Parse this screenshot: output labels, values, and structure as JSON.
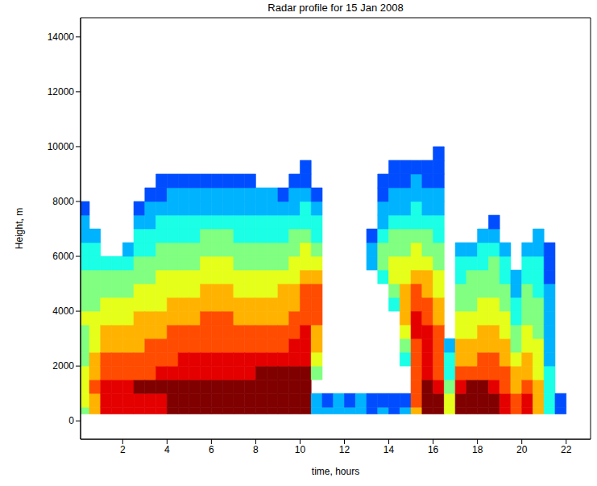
{
  "chart_data": {
    "type": "heatmap",
    "title": "Radar profile for 15 Jan 2008",
    "x_label": "time, hours",
    "y_label": "Height, m",
    "xlim": [
      0.1,
      23.1
    ],
    "xticks": [
      2,
      4,
      6,
      8,
      10,
      12,
      14,
      16,
      18,
      20,
      22
    ],
    "ylim": [
      -670,
      14700
    ],
    "yticks": [
      0,
      2000,
      4000,
      6000,
      8000,
      10000,
      12000,
      14000
    ],
    "grid": false,
    "x_bins": [
      0.1,
      0.5,
      1,
      1.5,
      2,
      2.5,
      3,
      3.5,
      4,
      4.5,
      5,
      5.5,
      6,
      6.5,
      7,
      7.5,
      8,
      8.5,
      9,
      9.5,
      10,
      10.5,
      11,
      11.5,
      12,
      12.5,
      13,
      13.5,
      14,
      14.5,
      15,
      15.5,
      16,
      16.5,
      17,
      17.5,
      18,
      18.5,
      19,
      19.5,
      20,
      20.5,
      21,
      21.5,
      22
    ],
    "y_bins": [
      250,
      500,
      1000,
      1500,
      2000,
      2500,
      3000,
      3500,
      4000,
      4500,
      5000,
      5500,
      6000,
      6500,
      7000,
      7500,
      8000,
      8500,
      9000,
      9500,
      10000
    ],
    "zlim": [
      0,
      10
    ],
    "z": [
      [
        5,
        6,
        6,
        6,
        5,
        5,
        5,
        6,
        5,
        5,
        5,
        4,
        4,
        3,
        3,
        2,
        null,
        null,
        null,
        null
      ],
      [
        7,
        7,
        8,
        7,
        7,
        6,
        6,
        6,
        5,
        5,
        5,
        4,
        4,
        3,
        null,
        null,
        null,
        null,
        null,
        null
      ],
      [
        9,
        9,
        9,
        8,
        8,
        7,
        7,
        6,
        6,
        5,
        5,
        4,
        null,
        null,
        null,
        null,
        null,
        null,
        null,
        null
      ],
      [
        9,
        9,
        9,
        8,
        8,
        7,
        7,
        6,
        6,
        5,
        5,
        4,
        null,
        null,
        null,
        null,
        null,
        null,
        null,
        null
      ],
      [
        9,
        9,
        9,
        8,
        8,
        7,
        7,
        6,
        6,
        5,
        5,
        4,
        3,
        null,
        null,
        null,
        null,
        null,
        null,
        null
      ],
      [
        9,
        9,
        10,
        8,
        8,
        7,
        7,
        7,
        6,
        6,
        5,
        5,
        4,
        4,
        3,
        2,
        null,
        null,
        null,
        null
      ],
      [
        9,
        9,
        10,
        8,
        8,
        8,
        7,
        7,
        6,
        6,
        5,
        5,
        4,
        4,
        3,
        3,
        2,
        null,
        null,
        null
      ],
      [
        9,
        9,
        10,
        9,
        8,
        8,
        7,
        7,
        6,
        6,
        6,
        5,
        5,
        4,
        4,
        3,
        2,
        2,
        null,
        null
      ],
      [
        10,
        10,
        10,
        9,
        8,
        8,
        8,
        7,
        7,
        6,
        6,
        5,
        5,
        4,
        4,
        3,
        3,
        2,
        null,
        null
      ],
      [
        10,
        10,
        10,
        9,
        9,
        8,
        8,
        7,
        7,
        6,
        6,
        5,
        5,
        4,
        4,
        3,
        3,
        2,
        null,
        null
      ],
      [
        10,
        10,
        10,
        9,
        9,
        8,
        8,
        7,
        7,
        6,
        6,
        5,
        5,
        4,
        4,
        3,
        3,
        2,
        null,
        null
      ],
      [
        10,
        10,
        10,
        9,
        9,
        8,
        8,
        8,
        7,
        7,
        6,
        6,
        5,
        5,
        4,
        3,
        3,
        2,
        null,
        null
      ],
      [
        10,
        10,
        10,
        9,
        9,
        8,
        8,
        8,
        7,
        7,
        6,
        6,
        5,
        5,
        4,
        3,
        3,
        2,
        null,
        null
      ],
      [
        10,
        10,
        10,
        9,
        9,
        8,
        8,
        8,
        7,
        7,
        6,
        6,
        5,
        5,
        4,
        3,
        3,
        2,
        null,
        null
      ],
      [
        10,
        10,
        10,
        9,
        9,
        8,
        8,
        7,
        7,
        6,
        6,
        5,
        5,
        4,
        4,
        3,
        3,
        2,
        null,
        null
      ],
      [
        10,
        10,
        10,
        9,
        9,
        8,
        8,
        7,
        7,
        6,
        6,
        5,
        5,
        4,
        4,
        3,
        3,
        2,
        null,
        null
      ],
      [
        10,
        10,
        10,
        10,
        9,
        8,
        8,
        7,
        7,
        6,
        6,
        5,
        5,
        4,
        4,
        3,
        3,
        null,
        null,
        null
      ],
      [
        10,
        10,
        10,
        10,
        9,
        8,
        8,
        7,
        7,
        6,
        6,
        5,
        5,
        4,
        4,
        3,
        3,
        null,
        null,
        null
      ],
      [
        10,
        10,
        10,
        10,
        9,
        8,
        8,
        7,
        7,
        7,
        6,
        5,
        5,
        4,
        4,
        3,
        2,
        null,
        null,
        null
      ],
      [
        10,
        10,
        10,
        10,
        9,
        9,
        8,
        8,
        7,
        7,
        6,
        6,
        5,
        5,
        4,
        3,
        3,
        2,
        null,
        null
      ],
      [
        10,
        10,
        10,
        10,
        9,
        9,
        9,
        8,
        8,
        8,
        7,
        6,
        6,
        5,
        4,
        4,
        3,
        2,
        2,
        null
      ],
      [
        3,
        3,
        null,
        5,
        6,
        7,
        7,
        8,
        8,
        8,
        7,
        6,
        5,
        4,
        4,
        3,
        2,
        null,
        null,
        null
      ],
      [
        3,
        2,
        null,
        null,
        null,
        null,
        null,
        null,
        null,
        null,
        null,
        null,
        null,
        null,
        null,
        null,
        null,
        null,
        null,
        null
      ],
      [
        3,
        3,
        null,
        null,
        null,
        null,
        null,
        null,
        null,
        null,
        null,
        null,
        null,
        null,
        null,
        null,
        null,
        null,
        null,
        null
      ],
      [
        3,
        2,
        null,
        null,
        null,
        null,
        null,
        null,
        null,
        null,
        null,
        null,
        null,
        null,
        null,
        null,
        null,
        null,
        null,
        null
      ],
      [
        3,
        3,
        null,
        null,
        null,
        null,
        null,
        null,
        null,
        null,
        null,
        null,
        null,
        null,
        null,
        null,
        null,
        null,
        null,
        null
      ],
      [
        2,
        2,
        null,
        null,
        null,
        null,
        null,
        null,
        null,
        null,
        null,
        3,
        3,
        2,
        null,
        null,
        null,
        null,
        null,
        null
      ],
      [
        3,
        2,
        null,
        null,
        null,
        null,
        null,
        null,
        null,
        null,
        4,
        5,
        5,
        4,
        3,
        3,
        2,
        2,
        null,
        null
      ],
      [
        2,
        2,
        null,
        null,
        null,
        null,
        null,
        null,
        4,
        5,
        6,
        6,
        5,
        5,
        4,
        3,
        3,
        2,
        2,
        null
      ],
      [
        3,
        2,
        null,
        null,
        4,
        5,
        6,
        7,
        7,
        7,
        6,
        6,
        5,
        5,
        4,
        3,
        3,
        2,
        2,
        null
      ],
      [
        7,
        8,
        8,
        8,
        8,
        8,
        9,
        9,
        8,
        8,
        7,
        6,
        6,
        5,
        4,
        4,
        3,
        3,
        2,
        null
      ],
      [
        10,
        10,
        10,
        9,
        9,
        9,
        9,
        8,
        8,
        7,
        7,
        6,
        5,
        5,
        4,
        3,
        3,
        2,
        2,
        null
      ],
      [
        10,
        10,
        9,
        8,
        8,
        8,
        8,
        7,
        7,
        6,
        6,
        5,
        5,
        4,
        4,
        3,
        3,
        2,
        2,
        2
      ],
      [
        6,
        6,
        5,
        4,
        4,
        3,
        null,
        null,
        null,
        null,
        null,
        null,
        null,
        null,
        null,
        null,
        null,
        null,
        null,
        null
      ],
      [
        10,
        10,
        9,
        8,
        7,
        7,
        6,
        6,
        5,
        5,
        4,
        4,
        3,
        null,
        null,
        null,
        null,
        null,
        null,
        null
      ],
      [
        10,
        10,
        10,
        8,
        7,
        7,
        6,
        6,
        5,
        5,
        5,
        4,
        3,
        null,
        null,
        null,
        null,
        null,
        null,
        null
      ],
      [
        10,
        10,
        10,
        8,
        8,
        7,
        7,
        6,
        6,
        5,
        5,
        4,
        4,
        3,
        null,
        null,
        null,
        null,
        null,
        null
      ],
      [
        10,
        10,
        9,
        8,
        8,
        7,
        7,
        6,
        6,
        5,
        5,
        5,
        4,
        3,
        2,
        null,
        null,
        null,
        null,
        null
      ],
      [
        9,
        9,
        8,
        8,
        7,
        7,
        6,
        6,
        5,
        5,
        4,
        4,
        3,
        null,
        null,
        null,
        null,
        null,
        null,
        null
      ],
      [
        8,
        8,
        7,
        7,
        6,
        5,
        5,
        4,
        4,
        3,
        3,
        null,
        null,
        null,
        null,
        null,
        null,
        null,
        null,
        null
      ],
      [
        9,
        9,
        8,
        7,
        7,
        6,
        6,
        5,
        5,
        5,
        4,
        4,
        3,
        null,
        null,
        null,
        null,
        null,
        null,
        null
      ],
      [
        7,
        7,
        7,
        6,
        6,
        6,
        5,
        5,
        5,
        4,
        4,
        4,
        3,
        3,
        null,
        null,
        null,
        null,
        null,
        null
      ],
      [
        4,
        4,
        4,
        4,
        3,
        3,
        3,
        3,
        3,
        3,
        2,
        2,
        2,
        null,
        null,
        null,
        null,
        null,
        null,
        null
      ],
      [
        2,
        2,
        null,
        null,
        null,
        null,
        null,
        null,
        null,
        null,
        null,
        null,
        null,
        null,
        null,
        null,
        null,
        null,
        null,
        null
      ]
    ]
  }
}
